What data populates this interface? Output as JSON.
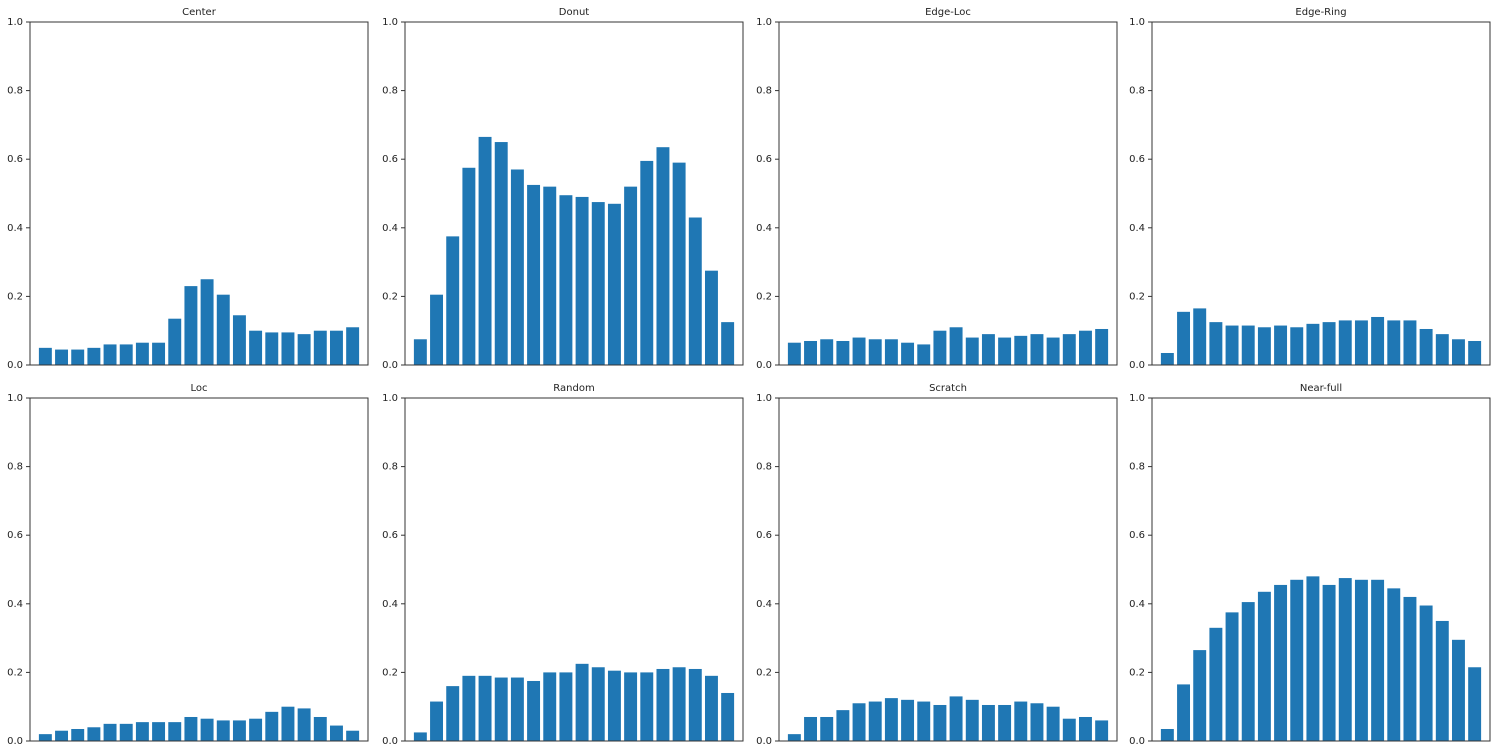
{
  "chart_data": [
    {
      "type": "bar",
      "title": "Center",
      "color": "#1f77b4",
      "ylim": [
        0,
        1
      ],
      "yticks": [
        {
          "value": 0,
          "label": "0.0"
        },
        0.2,
        0.4,
        0.6,
        0.8,
        {
          "value": 1,
          "label": "1.0"
        }
      ],
      "values": [
        0.05,
        0.045,
        0.045,
        0.05,
        0.06,
        0.06,
        0.065,
        0.065,
        0.135,
        0.23,
        0.25,
        0.205,
        0.145,
        0.1,
        0.095,
        0.095,
        0.09,
        0.1,
        0.1,
        0.11
      ]
    },
    {
      "type": "bar",
      "title": "Donut",
      "color": "#1f77b4",
      "ylim": [
        0,
        1
      ],
      "yticks": [
        {
          "value": 0,
          "label": "0.0"
        },
        0.2,
        0.4,
        0.6,
        0.8,
        {
          "value": 1,
          "label": "1.0"
        }
      ],
      "values": [
        0.075,
        0.205,
        0.375,
        0.575,
        0.665,
        0.65,
        0.57,
        0.525,
        0.52,
        0.495,
        0.49,
        0.475,
        0.47,
        0.52,
        0.595,
        0.635,
        0.59,
        0.43,
        0.275,
        0.125
      ]
    },
    {
      "type": "bar",
      "title": "Edge-Loc",
      "color": "#1f77b4",
      "ylim": [
        0,
        1
      ],
      "yticks": [
        {
          "value": 0,
          "label": "0.0"
        },
        0.2,
        0.4,
        0.6,
        0.8,
        {
          "value": 1,
          "label": "1.0"
        }
      ],
      "values": [
        0.065,
        0.07,
        0.075,
        0.07,
        0.08,
        0.075,
        0.075,
        0.065,
        0.06,
        0.1,
        0.11,
        0.08,
        0.09,
        0.08,
        0.085,
        0.09,
        0.08,
        0.09,
        0.1,
        0.105
      ]
    },
    {
      "type": "bar",
      "title": "Edge-Ring",
      "color": "#1f77b4",
      "ylim": [
        0,
        1
      ],
      "yticks": [
        {
          "value": 0,
          "label": "0.0"
        },
        0.2,
        0.4,
        0.6,
        0.8,
        {
          "value": 1,
          "label": "1.0"
        }
      ],
      "values": [
        0.035,
        0.155,
        0.165,
        0.125,
        0.115,
        0.115,
        0.11,
        0.115,
        0.11,
        0.12,
        0.125,
        0.13,
        0.13,
        0.14,
        0.13,
        0.13,
        0.105,
        0.09,
        0.075,
        0.07
      ]
    },
    {
      "type": "bar",
      "title": "Loc",
      "color": "#1f77b4",
      "ylim": [
        0,
        1
      ],
      "yticks": [
        {
          "value": 0,
          "label": "0.0"
        },
        0.2,
        0.4,
        0.6,
        0.8,
        {
          "value": 1,
          "label": "1.0"
        }
      ],
      "values": [
        0.02,
        0.03,
        0.035,
        0.04,
        0.05,
        0.05,
        0.055,
        0.055,
        0.055,
        0.07,
        0.065,
        0.06,
        0.06,
        0.065,
        0.085,
        0.1,
        0.095,
        0.07,
        0.045,
        0.03
      ]
    },
    {
      "type": "bar",
      "title": "Random",
      "color": "#1f77b4",
      "ylim": [
        0,
        1
      ],
      "yticks": [
        {
          "value": 0,
          "label": "0.0"
        },
        0.2,
        0.4,
        0.6,
        0.8,
        {
          "value": 1,
          "label": "1.0"
        }
      ],
      "values": [
        0.025,
        0.115,
        0.16,
        0.19,
        0.19,
        0.185,
        0.185,
        0.175,
        0.2,
        0.2,
        0.225,
        0.215,
        0.205,
        0.2,
        0.2,
        0.21,
        0.215,
        0.21,
        0.19,
        0.14
      ]
    },
    {
      "type": "bar",
      "title": "Scratch",
      "color": "#1f77b4",
      "ylim": [
        0,
        1
      ],
      "yticks": [
        {
          "value": 0,
          "label": "0.0"
        },
        0.2,
        0.4,
        0.6,
        0.8,
        {
          "value": 1,
          "label": "1.0"
        }
      ],
      "values": [
        0.02,
        0.07,
        0.07,
        0.09,
        0.11,
        0.115,
        0.125,
        0.12,
        0.115,
        0.105,
        0.13,
        0.12,
        0.105,
        0.105,
        0.115,
        0.11,
        0.1,
        0.065,
        0.07,
        0.06
      ]
    },
    {
      "type": "bar",
      "title": "Near-full",
      "color": "#1f77b4",
      "ylim": [
        0,
        1
      ],
      "yticks": [
        {
          "value": 0,
          "label": "0.0"
        },
        0.2,
        0.4,
        0.6,
        0.8,
        {
          "value": 1,
          "label": "1.0"
        }
      ],
      "values": [
        0.035,
        0.165,
        0.265,
        0.33,
        0.375,
        0.405,
        0.435,
        0.455,
        0.47,
        0.48,
        0.455,
        0.475,
        0.47,
        0.47,
        0.445,
        0.42,
        0.395,
        0.35,
        0.295,
        0.215
      ]
    }
  ]
}
